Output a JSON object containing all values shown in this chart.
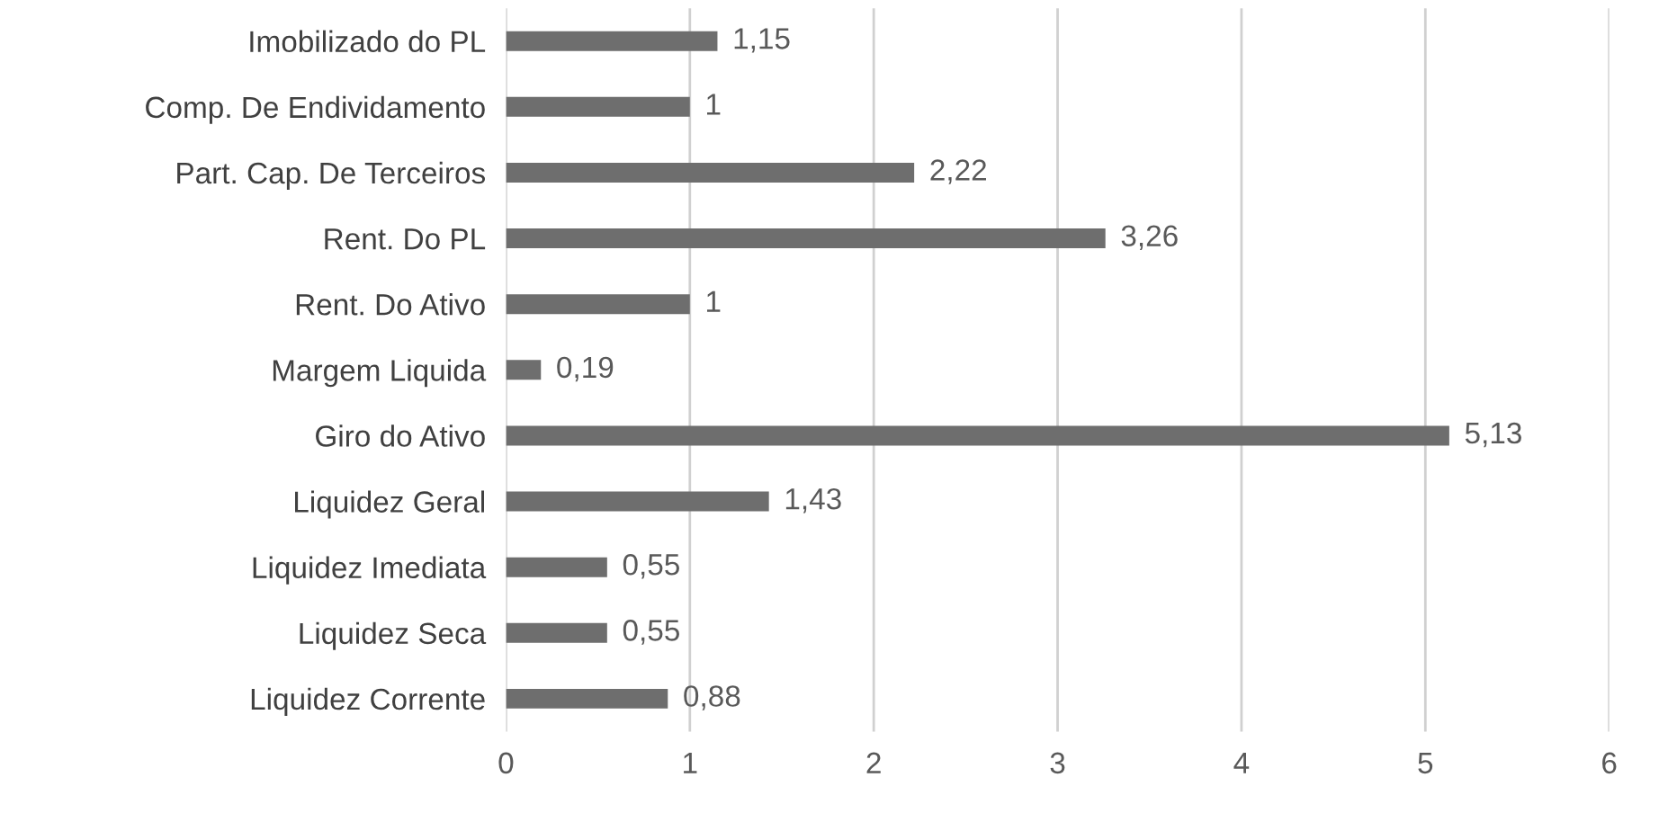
{
  "chart_data": {
    "type": "bar",
    "orientation": "horizontal",
    "categories": [
      "Imobilizado do PL",
      "Comp. De Endividamento",
      "Part. Cap. De Terceiros",
      "Rent. Do PL",
      "Rent. Do Ativo",
      "Margem Liquida",
      "Giro do Ativo",
      "Liquidez Geral",
      "Liquidez Imediata",
      "Liquidez Seca",
      "Liquidez Corrente"
    ],
    "values": [
      1.15,
      1,
      2.22,
      3.26,
      1,
      0.19,
      5.13,
      1.43,
      0.55,
      0.55,
      0.88
    ],
    "value_labels": [
      "1,15",
      "1",
      "2,22",
      "3,26",
      "1",
      "0,19",
      "5,13",
      "1,43",
      "0,55",
      "0,55",
      "0,88"
    ],
    "color": "#6e6e6e",
    "xlim": [
      0,
      6
    ],
    "xticks": [
      0,
      1,
      2,
      3,
      4,
      5,
      6
    ],
    "grid": "x"
  }
}
